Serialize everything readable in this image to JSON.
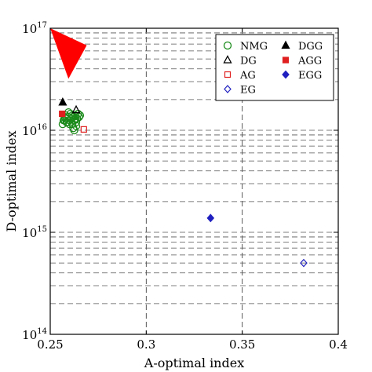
{
  "chart_data": {
    "type": "scatter",
    "xlabel": "A-optimal index",
    "ylabel": "D-optimal index",
    "xlim": [
      0.25,
      0.4
    ],
    "ylim": [
      100000000000000.0,
      1e+17
    ],
    "yscale": "log",
    "x_ticks": [
      0.25,
      0.3,
      0.35,
      0.4
    ],
    "x_tick_labels": [
      "0.25",
      "0.3",
      "0.35",
      "0.4"
    ],
    "y_ticks": [
      100000000000000.0,
      1000000000000000.0,
      1e+16,
      1e+17
    ],
    "y_tick_labels": [
      {
        "base": "10",
        "exp": "14"
      },
      {
        "base": "10",
        "exp": "15"
      },
      {
        "base": "10",
        "exp": "16"
      },
      {
        "base": "10",
        "exp": "17"
      }
    ],
    "grid": {
      "x": "dashed",
      "y": "dashed-major-and-minor"
    },
    "legend_position": "top-right",
    "series": [
      {
        "name": "NMG",
        "marker": "circle-open",
        "color": "#1a8a1a",
        "points": [
          [
            0.2565,
            1.15e+16
          ],
          [
            0.2575,
            1.25e+16
          ],
          [
            0.258,
            1.4e+16
          ],
          [
            0.2585,
            1.3e+16
          ],
          [
            0.259,
            1.2e+16
          ],
          [
            0.2595,
            1.35e+16
          ],
          [
            0.26,
            1.25e+16
          ],
          [
            0.2605,
            1.45e+16
          ],
          [
            0.261,
            1.3e+16
          ],
          [
            0.2615,
            1.15e+16
          ],
          [
            0.262,
            1.35e+16
          ],
          [
            0.2625,
            1.25e+16
          ],
          [
            0.263,
            1.4e+16
          ],
          [
            0.2635,
            1.2e+16
          ],
          [
            0.264,
            1.3e+16
          ],
          [
            0.2645,
            1.45e+16
          ],
          [
            0.265,
            1.35e+16
          ],
          [
            0.2655,
            1.4e+16
          ],
          [
            0.26,
            1.15e+16
          ],
          [
            0.262,
            1.05e+16
          ],
          [
            0.2625,
            1e+16
          ],
          [
            0.2595,
            1.5e+16
          ],
          [
            0.2585,
            1.2e+16
          ],
          [
            0.2575,
            1.35e+16
          ],
          [
            0.257,
            1.25e+16
          ],
          [
            0.2615,
            1.4e+16
          ],
          [
            0.2635,
            1.1e+16
          ],
          [
            0.263,
            1.3e+16
          ]
        ]
      },
      {
        "name": "DG",
        "marker": "triangle-open",
        "color": "#000000",
        "points": [
          [
            0.2635,
            1.58e+16
          ]
        ]
      },
      {
        "name": "AG",
        "marker": "square-open",
        "color": "#e02020",
        "points": [
          [
            0.2675,
            1.02e+16
          ]
        ]
      },
      {
        "name": "EG",
        "marker": "diamond-open",
        "color": "#2020c0",
        "points": [
          [
            0.382,
            500000000000000.0
          ]
        ]
      },
      {
        "name": "DGG",
        "marker": "triangle-filled",
        "color": "#000000",
        "points": [
          [
            0.2565,
            1.88e+16
          ]
        ]
      },
      {
        "name": "AGG",
        "marker": "square-filled",
        "color": "#e02020",
        "points": [
          [
            0.2562,
            1.45e+16
          ]
        ]
      },
      {
        "name": "EGG",
        "marker": "diamond-filled",
        "color": "#2020c0",
        "points": [
          [
            0.3335,
            1380000000000000.0
          ]
        ]
      }
    ],
    "annotation_triangle": {
      "color": "#ff0000",
      "vertices": [
        [
          0.25,
          1e+17
        ],
        [
          0.269,
          6.8e+16
        ],
        [
          0.2595,
          3.2e+16
        ]
      ]
    }
  }
}
